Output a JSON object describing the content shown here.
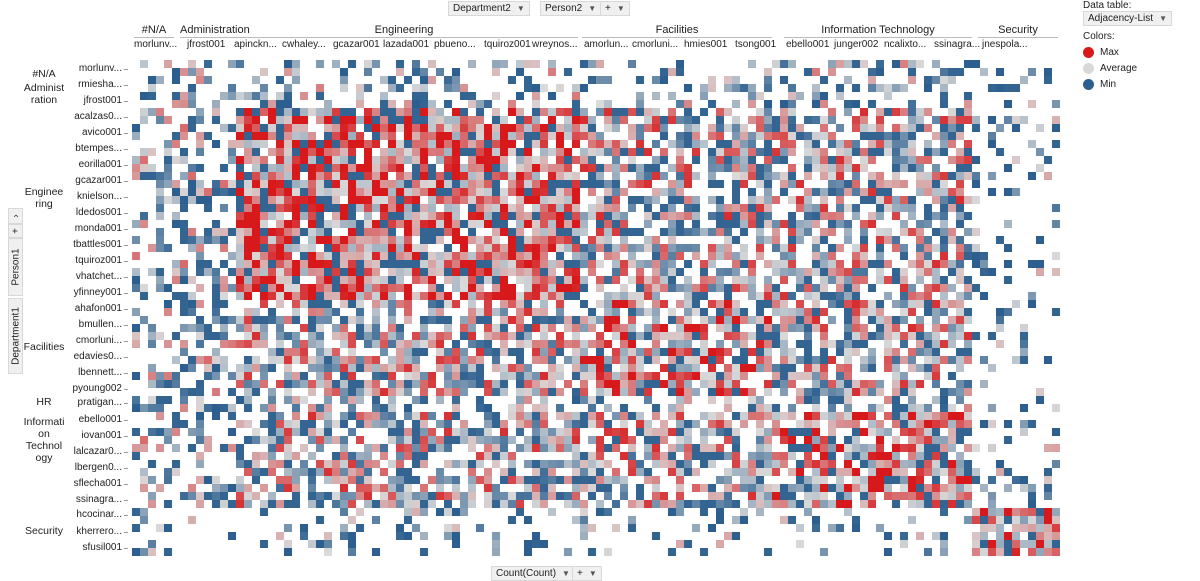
{
  "toolbar_top": {
    "dept2": "Department2",
    "person2": "Person2",
    "plus": "+"
  },
  "toolbar_left": {
    "dept1": "Department1",
    "person1": "Person1",
    "plus": "+"
  },
  "toolbar_bottom": {
    "measure": "Count(Count)",
    "plus": "+"
  },
  "legend": {
    "data_table_label": "Data table:",
    "data_table_value": "Adjacency-List",
    "colors_label": "Colors:",
    "items": [
      {
        "label": "Max",
        "color": "#d7191c"
      },
      {
        "label": "Average",
        "color": "#d9d9d9"
      },
      {
        "label": "Min",
        "color": "#2c5f8f"
      }
    ]
  },
  "chart_data": {
    "type": "heatmap",
    "x_departments": [
      {
        "name": "#N/A",
        "labels": [
          "morlunv..."
        ]
      },
      {
        "name": "Administration",
        "labels": [
          "jfrost001"
        ]
      },
      {
        "name": "Engineering",
        "labels": [
          "apinckn...",
          "cwhaley...",
          "gcazar001",
          "lazada001",
          "pbueno...",
          "tquiroz001",
          "wreynos..."
        ]
      },
      {
        "name": "Facilities",
        "labels": [
          "amorlun...",
          "cmorluni...",
          "hmies001",
          "tsong001"
        ]
      },
      {
        "name": "Information Technology",
        "labels": [
          "ebello001",
          "junger002",
          "ncalixto...",
          "ssinagra..."
        ]
      },
      {
        "name": "Security",
        "labels": [
          "jnespola..."
        ]
      }
    ],
    "y_departments": [
      {
        "name": "#N/A",
        "labels": [
          "morlunv..."
        ]
      },
      {
        "name": "Administration",
        "labels": [
          "rmiesha...",
          "jfrost001"
        ]
      },
      {
        "name": "Engineering",
        "labels": [
          "acalzas0...",
          "avico001",
          "btempes...",
          "eorilla001",
          "gcazar001",
          "knielson...",
          "ldedos001",
          "monda001",
          "tbattles001",
          "tquiroz001",
          "vhatchet...",
          "yfinney001"
        ]
      },
      {
        "name": "Facilities",
        "labels": [
          "ahafon001",
          "bmullen...",
          "cmorluni...",
          "edavies0...",
          "lbennett...",
          "pyoung002"
        ]
      },
      {
        "name": "HR",
        "labels": [
          "pratigan..."
        ]
      },
      {
        "name": "Information Technology",
        "labels": [
          "ebello001",
          "iovan001",
          "lalcazar0...",
          "lbergen0...",
          "sflecha001",
          "ssinagra..."
        ]
      },
      {
        "name": "Security",
        "labels": [
          "hcocinar...",
          "kherrero...",
          "sfusil001"
        ]
      }
    ],
    "color_scale": {
      "max": "Max",
      "mid": "Average",
      "min": "Min"
    }
  }
}
